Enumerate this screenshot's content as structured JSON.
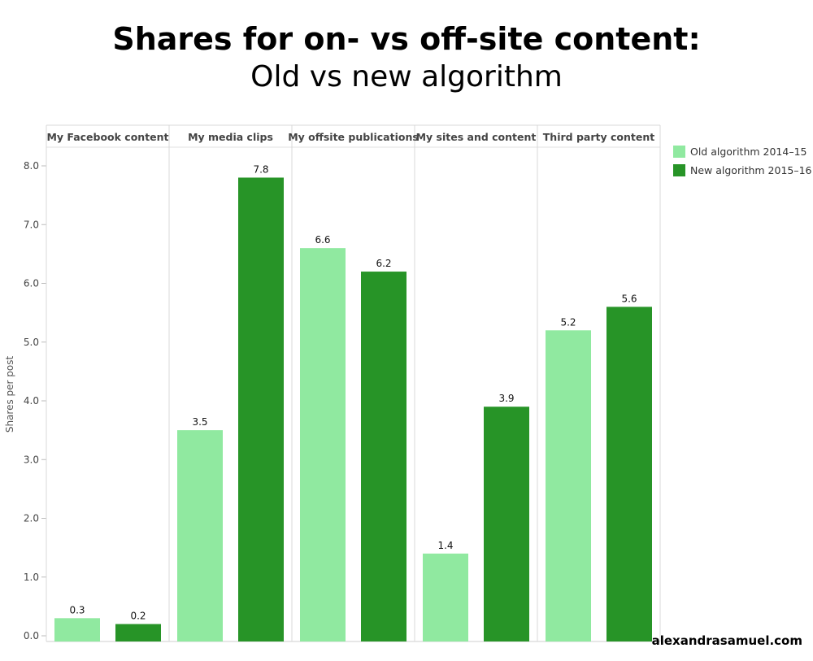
{
  "chart_data": {
    "type": "bar",
    "title": "Shares for on- vs off-site content:",
    "subtitle": "Old vs new algorithm",
    "ylabel": "Shares per post",
    "xlabel": "",
    "ylim": [
      0,
      8.3
    ],
    "yticks": [
      "0.0",
      "1.0",
      "2.0",
      "3.0",
      "4.0",
      "5.0",
      "6.0",
      "7.0",
      "8.0"
    ],
    "categories": [
      "My Facebook content",
      "My media clips",
      "My offsite publications",
      "My sites and content",
      "Third party content"
    ],
    "series": [
      {
        "name": "Old algorithm 2014–15",
        "color": "#90e9a0",
        "values": [
          0.3,
          3.5,
          6.6,
          1.4,
          5.2
        ]
      },
      {
        "name": "New algorithm 2015–16",
        "color": "#279427",
        "values": [
          0.2,
          7.8,
          6.2,
          3.9,
          5.6
        ]
      }
    ],
    "data_labels": true,
    "legend": "top-right",
    "grid": false
  },
  "watermark": "alexandrasamuel.com"
}
